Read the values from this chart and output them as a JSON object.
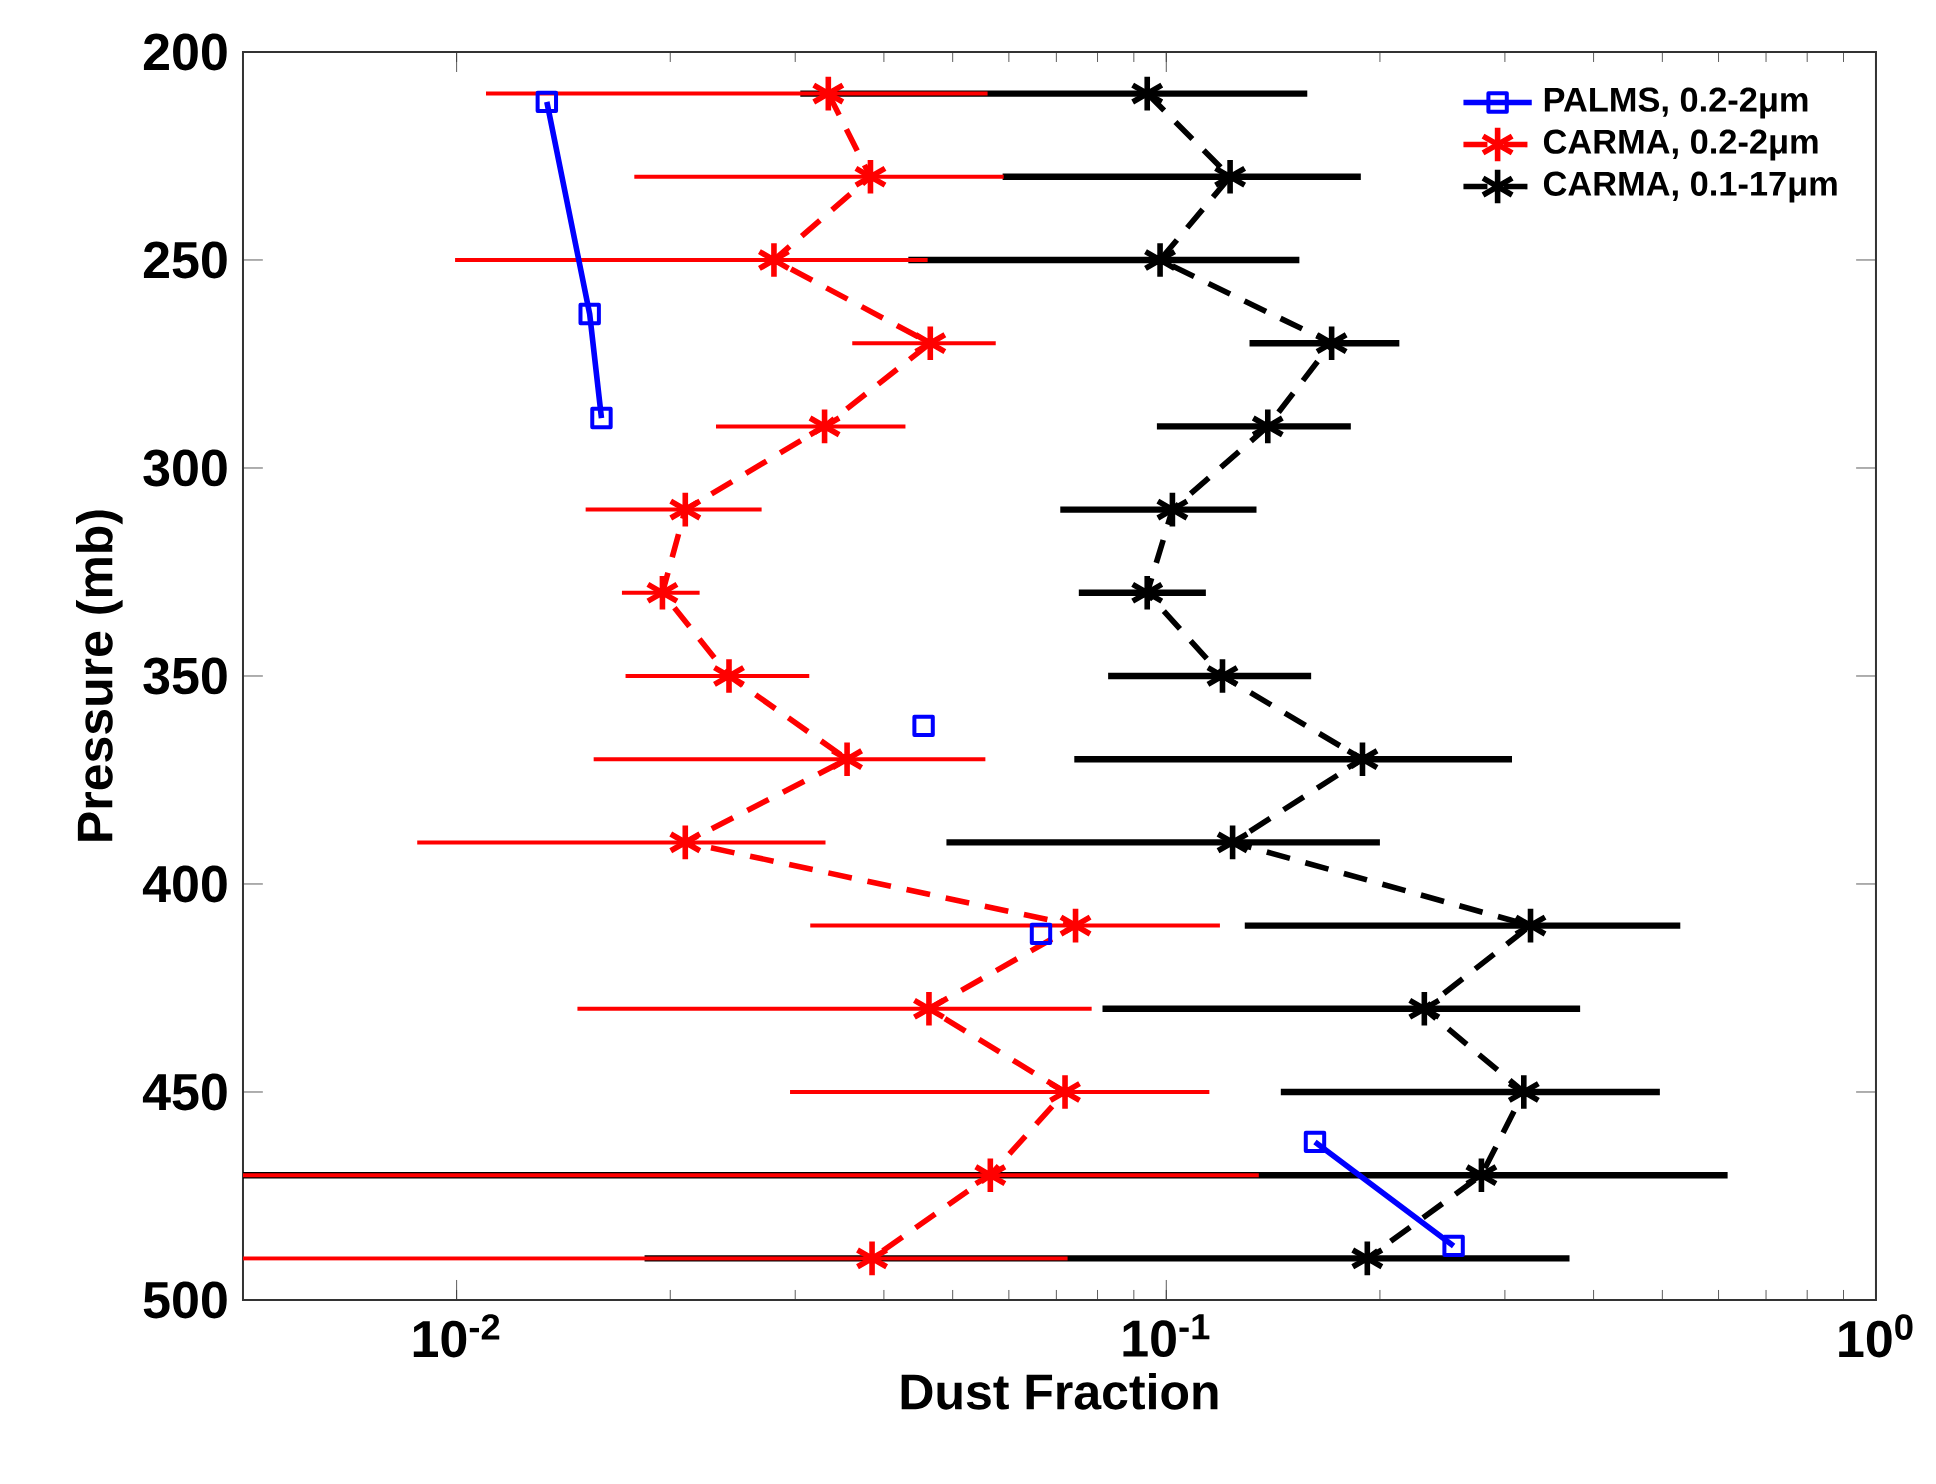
{
  "chart_data": {
    "type": "line",
    "xlabel": "Dust Fraction",
    "ylabel": "Pressure (mb)",
    "log": "x",
    "xlim": [
      0.005,
      1
    ],
    "xticks": [
      {
        "value": 0.01,
        "label": "10$^{-2}$"
      },
      {
        "value": 0.1,
        "label": "10$^{-1}$"
      },
      {
        "value": 1,
        "label": "10$^{0}$"
      }
    ],
    "ylim": [
      500,
      200
    ],
    "yticks": [
      200,
      250,
      300,
      350,
      400,
      450,
      500
    ],
    "legend": "top right",
    "grid": false,
    "series": [
      {
        "name": "PALMS, 0.2-2μm",
        "color": "#0000ff",
        "marker": "square",
        "line_style": "solid",
        "x": [
          0.0134,
          0.0154,
          0.016,
          null,
          0.0455,
          null,
          0.0666,
          null,
          0.162,
          0.254
        ],
        "values": [
          212,
          263,
          288,
          null,
          362,
          null,
          412,
          null,
          462,
          487
        ]
      },
      {
        "name": "CARMA, 0.2-2μm",
        "color": "#ff0000",
        "marker": "cross",
        "line_style": "dashed",
        "x": [
          0.0334,
          0.0383,
          0.028,
          0.0465,
          0.033,
          0.021,
          0.0195,
          0.0242,
          0.0355,
          0.021,
          0.0745,
          0.0463,
          0.072,
          0.0565,
          0.0385
        ],
        "values": [
          210,
          230,
          250,
          270,
          290,
          310,
          330,
          350,
          370,
          390,
          410,
          430,
          450,
          470,
          490
        ],
        "xerrors": [
          [
            0.011,
            0.056
          ],
          [
            0.0178,
            0.059
          ],
          [
            0.00995,
            0.0461
          ],
          [
            0.0361,
            0.0575
          ],
          [
            0.0232,
            0.0429
          ],
          [
            0.0152,
            0.0269
          ],
          [
            0.0171,
            0.022
          ],
          [
            0.0173,
            0.0314
          ],
          [
            0.0156,
            0.0556
          ],
          [
            0.0088,
            0.0331
          ],
          [
            0.0315,
            0.119
          ],
          [
            0.0148,
            0.0785
          ],
          [
            0.0295,
            0.115
          ],
          [
            0.005,
            0.135
          ],
          [
            0.005,
            0.0726
          ]
        ]
      },
      {
        "name": "CARMA, 0.1-17μm",
        "color": "#000000",
        "marker": "cross",
        "line_style": "dashed",
        "x": [
          0.094,
          0.123,
          0.098,
          0.171,
          0.139,
          0.102,
          0.094,
          0.12,
          0.189,
          0.124,
          0.326,
          0.231,
          0.319,
          0.278,
          0.192
        ],
        "values": [
          210,
          230,
          250,
          270,
          290,
          310,
          330,
          350,
          370,
          390,
          410,
          430,
          450,
          470,
          490
        ],
        "xerrors": [
          [
            0.0305,
            0.158
          ],
          [
            0.0588,
            0.188
          ],
          [
            0.0433,
            0.154
          ],
          [
            0.131,
            0.213
          ],
          [
            0.097,
            0.182
          ],
          [
            0.0709,
            0.134
          ],
          [
            0.0753,
            0.1137
          ],
          [
            0.0828,
            0.16
          ],
          [
            0.0742,
            0.307
          ],
          [
            0.049,
            0.2
          ],
          [
            0.129,
            0.53
          ],
          [
            0.0813,
            0.383
          ],
          [
            0.145,
            0.496
          ],
          [
            0.005,
            0.618
          ],
          [
            0.0184,
            0.37
          ]
        ]
      }
    ]
  }
}
